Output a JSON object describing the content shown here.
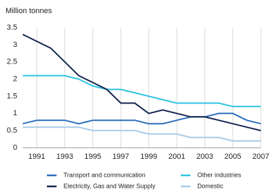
{
  "chart_data": {
    "type": "line",
    "ylabel": "Million tonnes",
    "x": [
      1990,
      1991,
      1992,
      1993,
      1994,
      1995,
      1996,
      1997,
      1998,
      1999,
      2000,
      2001,
      2002,
      2003,
      2004,
      2005,
      2006,
      2007
    ],
    "xlim": [
      1990,
      2007
    ],
    "xticks": [
      1991,
      1993,
      1995,
      1997,
      1999,
      2001,
      2003,
      2005,
      2007
    ],
    "ylim": [
      0,
      3.5
    ],
    "yticks": [
      0,
      0.5,
      1,
      1.5,
      2,
      2.5,
      3,
      3.5
    ],
    "grid": true,
    "series": [
      {
        "name": "Transport and communication",
        "color": "#2a6ebb",
        "values": [
          0.7,
          0.8,
          0.8,
          0.8,
          0.7,
          0.8,
          0.8,
          0.8,
          0.8,
          0.7,
          0.7,
          0.8,
          0.9,
          0.9,
          1.0,
          1.0,
          0.8,
          0.7
        ]
      },
      {
        "name": "Other industries",
        "color": "#2ec4e0",
        "values": [
          2.1,
          2.1,
          2.1,
          2.1,
          2.0,
          1.8,
          1.7,
          1.7,
          1.6,
          1.5,
          1.4,
          1.3,
          1.3,
          1.3,
          1.3,
          1.2,
          1.2,
          1.2
        ]
      },
      {
        "name": "Electricity, Gas and Water Supply",
        "color": "#14244f",
        "values": [
          3.3,
          3.1,
          2.9,
          2.5,
          2.1,
          1.9,
          1.7,
          1.3,
          1.3,
          1.0,
          1.1,
          1.0,
          0.9,
          0.9,
          0.8,
          0.7,
          0.6,
          0.5
        ]
      },
      {
        "name": "Domestic",
        "color": "#a8cbe8",
        "values": [
          0.6,
          0.6,
          0.6,
          0.6,
          0.6,
          0.5,
          0.5,
          0.5,
          0.5,
          0.4,
          0.4,
          0.4,
          0.3,
          0.3,
          0.3,
          0.2,
          0.2,
          0.2
        ]
      }
    ]
  }
}
